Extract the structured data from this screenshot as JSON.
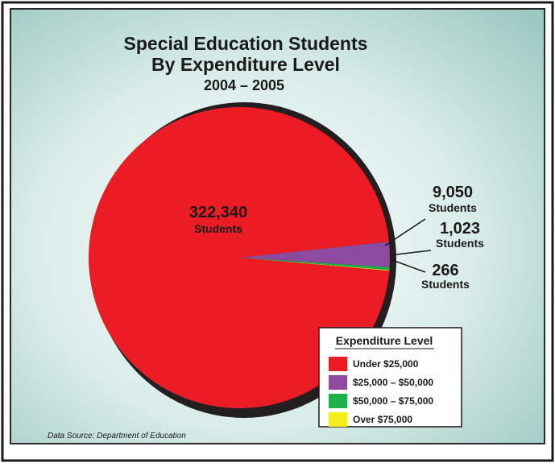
{
  "chart_data": {
    "type": "pie",
    "title_line1": "Special Education Students",
    "title_line2": "By Expenditure Level",
    "subtitle": "2004 – 2005",
    "unit": "Students",
    "slices": [
      {
        "label": "Under $25,000",
        "value": 322340,
        "value_text": "322,340",
        "color": "#ec1c24"
      },
      {
        "label": "$25,000 – $50,000",
        "value": 9050,
        "value_text": "9,050",
        "color": "#8e4a9e"
      },
      {
        "label": "$50,000 – $75,000",
        "value": 1023,
        "value_text": "1,023",
        "color": "#1db04b"
      },
      {
        "label": "Over $75,000",
        "value": 266,
        "value_text": "266",
        "color": "#f5ee1f"
      }
    ],
    "legend_title": "Expenditure Level",
    "source": "Data Source:  Department of Education"
  }
}
